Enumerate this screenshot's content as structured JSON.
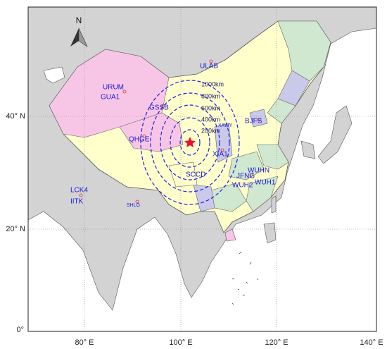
{
  "map": {
    "north_arrow": "N",
    "lon_labels": [
      "80° E",
      "100° E",
      "120° E",
      "140° E"
    ],
    "lat_labels": [
      "0°",
      "20° N",
      "40° N"
    ],
    "rings": [
      "1000km",
      "800km",
      "600km",
      "400km",
      "200km"
    ],
    "stations": [
      "URUM",
      "GUA1",
      "GSSB",
      "ULAB",
      "QHGE",
      "BJFS",
      "XAWY",
      "XIA1",
      "SCCD",
      "JFNG",
      "WUHN",
      "WUH2",
      "WUH1",
      "LCK4",
      "IITK",
      "SHLG"
    ]
  }
}
